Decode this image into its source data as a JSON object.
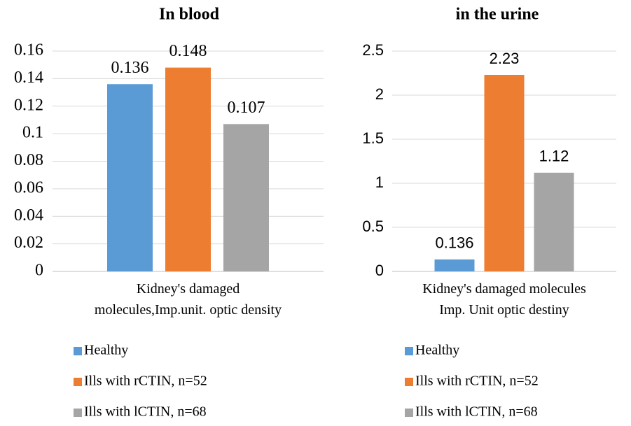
{
  "chart_data": [
    {
      "type": "bar",
      "title": "In blood",
      "categories": [
        "Kidney's damaged\nmolecules,Imp.unit. optic density"
      ],
      "series": [
        {
          "name": "Healthy",
          "color": "#5b9bd5",
          "values": [
            0.136
          ]
        },
        {
          "name": "Ills with rCTIN, n=52",
          "color": "#ed7d31",
          "values": [
            0.148
          ]
        },
        {
          "name": "Ills with lCTIN, n=68",
          "color": "#a5a5a5",
          "values": [
            0.107
          ]
        }
      ],
      "ylim": [
        0,
        0.16
      ],
      "yticks": [
        0,
        0.02,
        0.04,
        0.06,
        0.08,
        0.1,
        0.12,
        0.14,
        0.16
      ],
      "grid": true,
      "legend": "bottom"
    },
    {
      "type": "bar",
      "title": "in the urine",
      "categories": [
        "Kidney's damaged molecules\nImp. Unit optic destiny"
      ],
      "series": [
        {
          "name": "Healthy",
          "color": "#5b9bd5",
          "values": [
            0.136
          ]
        },
        {
          "name": "Ills with rCTIN, n=52",
          "color": "#ed7d31",
          "values": [
            2.23
          ]
        },
        {
          "name": "Ills with lCTIN, n=68",
          "color": "#a5a5a5",
          "values": [
            1.12
          ]
        }
      ],
      "ylim": [
        0,
        2.5
      ],
      "yticks": [
        0,
        0.5,
        1,
        1.5,
        2,
        2.5
      ],
      "grid": true,
      "legend": "bottom"
    }
  ]
}
